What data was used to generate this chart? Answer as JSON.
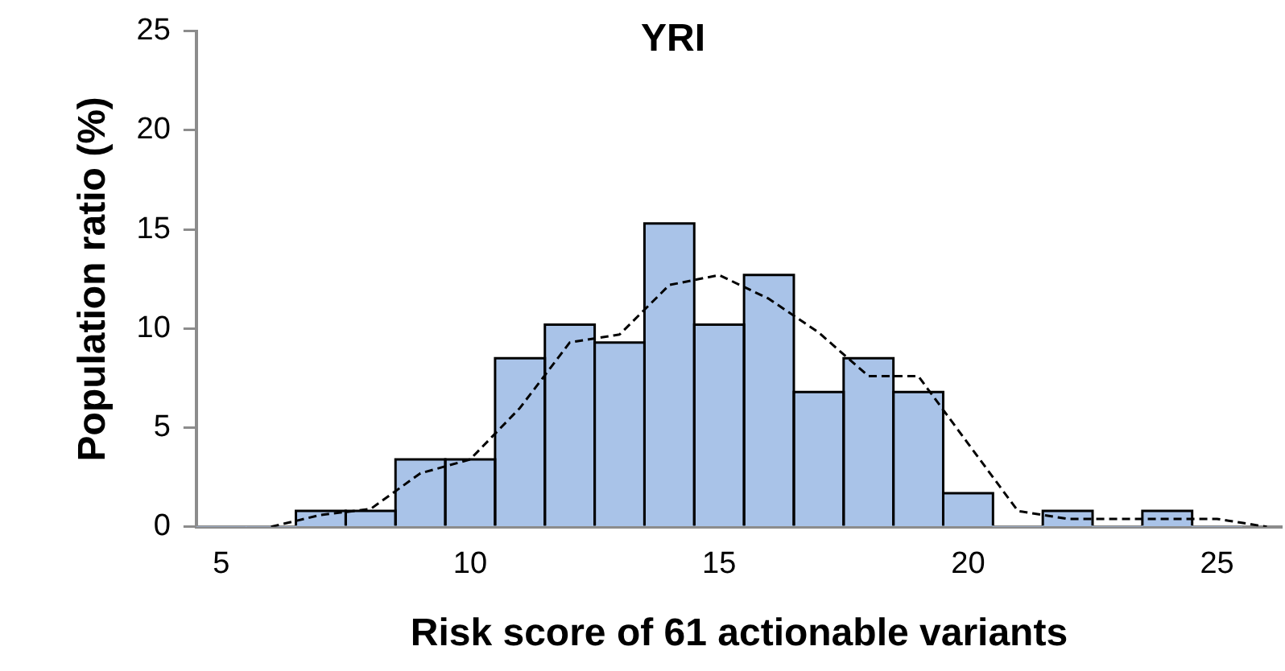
{
  "chart_data": {
    "type": "histogram",
    "title": "YRI",
    "xlabel": "Risk score of 61 actionable variants",
    "ylabel": "Population ratio (%)",
    "bins": [
      4.5,
      5.5,
      6.5,
      7.5,
      8.5,
      9.5,
      10.5,
      11.5,
      12.5,
      13.5,
      14.5,
      15.5,
      16.5,
      17.5,
      18.5,
      19.5,
      20.5,
      21.5,
      22.5,
      23.5,
      24.5,
      25.5
    ],
    "values": [
      0,
      0,
      0.8,
      0.8,
      3.4,
      3.4,
      8.5,
      10.2,
      9.3,
      15.3,
      10.2,
      12.7,
      6.8,
      8.5,
      6.8,
      1.7,
      0,
      0.8,
      0,
      0.8,
      0
    ],
    "color": "#a9c3e8",
    "series": [
      {
        "type": "line",
        "color": "#000000",
        "line_style": "dashed",
        "marker": "none",
        "x": [
          6,
          7,
          8,
          9,
          10,
          11,
          12,
          13,
          14,
          15,
          16,
          17,
          18,
          19,
          20,
          21,
          22,
          23,
          24,
          25,
          26
        ],
        "values": [
          0,
          0.6,
          0.9,
          2.7,
          3.4,
          6.0,
          9.3,
          9.7,
          12.2,
          12.7,
          11.5,
          9.8,
          7.6,
          7.6,
          4.2,
          0.8,
          0.4,
          0.4,
          0.4,
          0.4,
          0
        ]
      }
    ],
    "xlim": [
      4.5,
      26.3
    ],
    "xticks": [
      5,
      10,
      15,
      20,
      25
    ],
    "ylim": [
      0,
      25
    ],
    "yticks": [
      0,
      5,
      10,
      15,
      20,
      25
    ],
    "grid": false,
    "legend": false
  }
}
